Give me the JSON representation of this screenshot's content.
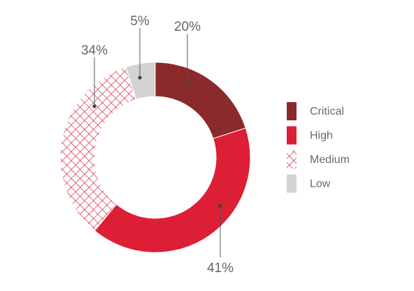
{
  "chart_data": {
    "type": "pie",
    "donut": true,
    "categories": [
      "Critical",
      "High",
      "Medium",
      "Low"
    ],
    "values": [
      20,
      41,
      34,
      5
    ],
    "labels": [
      "20%",
      "41%",
      "34%",
      "5%"
    ],
    "colors": [
      "#8b2a2a",
      "#dc1f34",
      "#d42a3e",
      "#d3d3d3"
    ],
    "patterns": [
      "solid",
      "solid",
      "crosshatch",
      "solid"
    ],
    "legend_position": "right"
  }
}
